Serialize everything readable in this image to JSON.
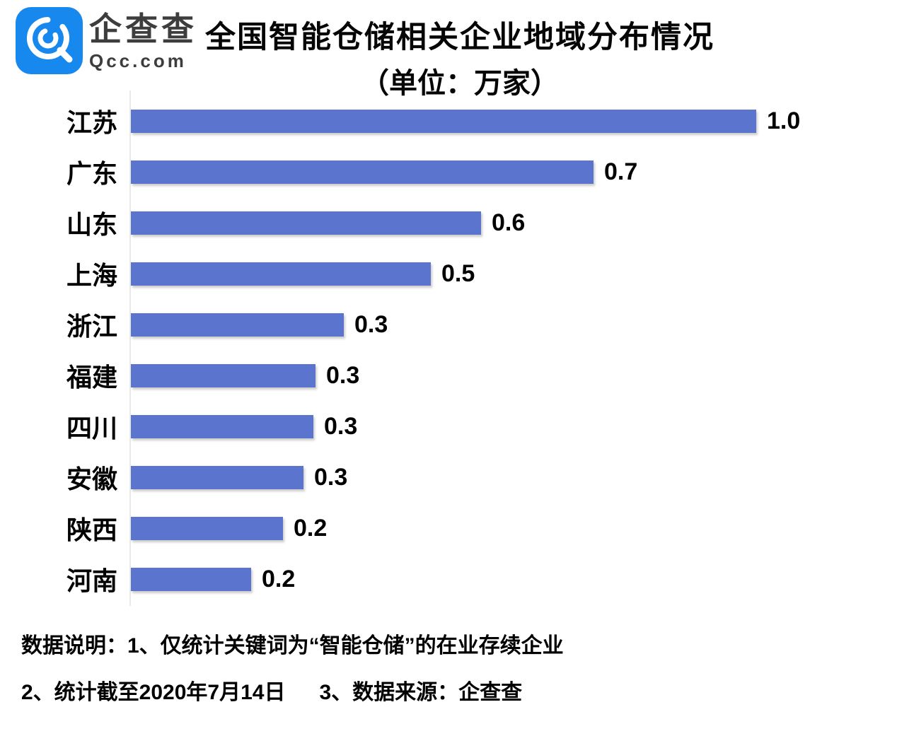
{
  "brand": {
    "name": "企查查",
    "domain": "Qcc.com",
    "logo_color": "#1789ee"
  },
  "title": {
    "line1": "全国智能仓储相关企业地域分布情况",
    "line2": "（单位：万家）"
  },
  "chart_data": {
    "type": "bar",
    "orientation": "horizontal",
    "title": "全国智能仓储相关企业地域分布情况",
    "unit_note": "（单位：万家）",
    "unit": "万家",
    "categories": [
      "江苏",
      "广东",
      "山东",
      "上海",
      "浙江",
      "福建",
      "四川",
      "安徽",
      "陕西",
      "河南"
    ],
    "values": [
      1.0,
      0.7,
      0.6,
      0.5,
      0.3,
      0.3,
      0.3,
      0.3,
      0.2,
      0.2
    ],
    "value_labels": [
      "1.0",
      "0.7",
      "0.6",
      "0.5",
      "0.3",
      "0.3",
      "0.3",
      "0.3",
      "0.2",
      "0.2"
    ],
    "bar_length_fractions": [
      1.0,
      0.74,
      0.56,
      0.48,
      0.34,
      0.295,
      0.292,
      0.276,
      0.243,
      0.192
    ],
    "bar_color": "#5b74cd",
    "axis_color": "#e9e9e9",
    "xlim": [
      0,
      1.15
    ],
    "grid": false,
    "legend": false
  },
  "footer": {
    "line1": "数据说明：1、仅统计关键词为“智能仓储”的在业存续企业",
    "line2_item1": "2、统计截至2020年7月14日",
    "line2_item2": "3、数据来源：企查查"
  }
}
